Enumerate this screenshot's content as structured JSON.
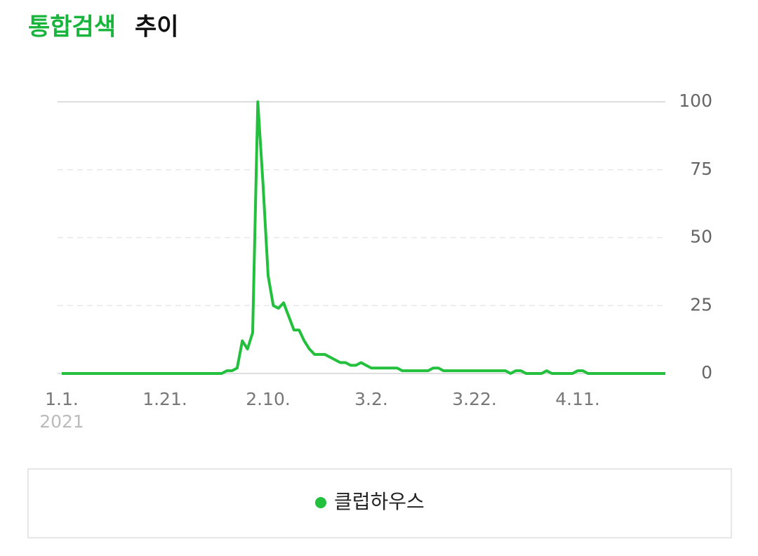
{
  "chart_data": {
    "type": "line",
    "title": "통합검색",
    "title_suffix": "추이",
    "x": [
      0,
      1,
      2,
      3,
      4,
      5,
      6,
      7,
      8,
      9,
      10,
      11,
      12,
      13,
      14,
      15,
      16,
      17,
      18,
      19,
      20,
      21,
      22,
      23,
      24,
      25,
      26,
      27,
      28,
      29,
      30,
      31,
      32,
      33,
      34,
      35,
      36,
      37,
      38,
      39,
      40,
      41,
      42,
      43,
      44,
      45,
      46,
      47,
      48,
      49,
      50,
      51,
      52,
      53,
      54,
      55,
      56,
      57,
      58,
      59,
      60,
      61,
      62,
      63,
      64,
      65,
      66,
      67,
      68,
      69,
      70,
      71,
      72,
      73,
      74,
      75,
      76,
      77,
      78,
      79,
      80,
      81,
      82,
      83,
      84,
      85,
      86,
      87,
      88,
      89,
      90,
      91,
      92,
      93,
      94,
      95,
      96,
      97,
      98,
      99,
      100,
      101,
      102,
      103,
      104,
      105,
      106,
      107,
      108,
      109,
      110,
      111,
      112,
      113,
      114,
      115,
      116,
      117
    ],
    "series": [
      {
        "name": "클럽하우스",
        "color": "#22c03c",
        "values": [
          0,
          0,
          0,
          0,
          0,
          0,
          0,
          0,
          0,
          0,
          0,
          0,
          0,
          0,
          0,
          0,
          0,
          0,
          0,
          0,
          0,
          0,
          0,
          0,
          0,
          0,
          0,
          0,
          0,
          0,
          0,
          0,
          1,
          1,
          2,
          12,
          9,
          15,
          100,
          70,
          36,
          25,
          24,
          26,
          21,
          16,
          16,
          12,
          9,
          7,
          7,
          7,
          6,
          5,
          4,
          4,
          3,
          3,
          4,
          3,
          2,
          2,
          2,
          2,
          2,
          2,
          1,
          1,
          1,
          1,
          1,
          1,
          2,
          2,
          1,
          1,
          1,
          1,
          1,
          1,
          1,
          1,
          1,
          1,
          1,
          1,
          1,
          0,
          1,
          1,
          0,
          0,
          0,
          0,
          1,
          0,
          0,
          0,
          0,
          0,
          1,
          1,
          0,
          0,
          0,
          0,
          0,
          0,
          0,
          0,
          0,
          0,
          0,
          0,
          0,
          0,
          0,
          0
        ]
      }
    ],
    "xlim": [
      0,
      117
    ],
    "xticks": [
      {
        "value": 0,
        "label": "1.1."
      },
      {
        "value": 20,
        "label": "1.21."
      },
      {
        "value": 40,
        "label": "2.10."
      },
      {
        "value": 60,
        "label": "3.2."
      },
      {
        "value": 80,
        "label": "3.22."
      },
      {
        "value": 100,
        "label": "4.11."
      }
    ],
    "xtick_sublabel": "2021",
    "ylim": [
      0,
      100
    ],
    "yticks": [
      0,
      25,
      50,
      75,
      100
    ],
    "grid": true
  }
}
